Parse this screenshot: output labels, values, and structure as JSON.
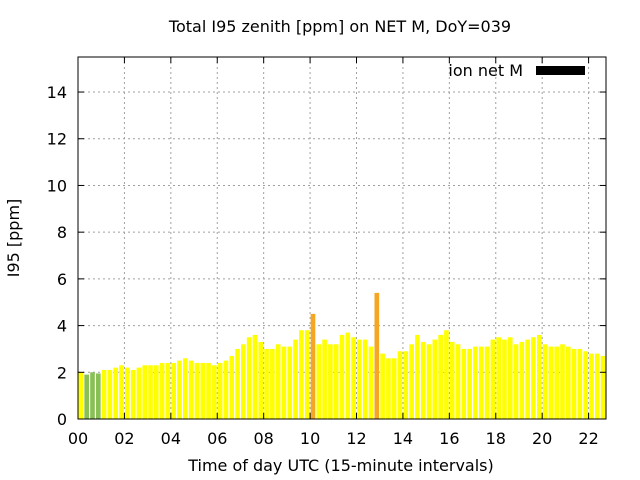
{
  "chart_data": {
    "type": "bar",
    "title": "Total I95 zenith [ppm] on NET M, DoY=039",
    "xlabel": "Time of day UTC (15-minute intervals)",
    "ylabel": "I95 [ppm]",
    "xlim": [
      0,
      22.75
    ],
    "ylim": [
      0,
      15.5
    ],
    "x_ticks": [
      "00",
      "02",
      "04",
      "06",
      "08",
      "10",
      "12",
      "14",
      "16",
      "18",
      "20",
      "22"
    ],
    "y_ticks": [
      "0",
      "2",
      "4",
      "6",
      "8",
      "10",
      "12",
      "14"
    ],
    "grid": true,
    "legend": {
      "label": "ion net M",
      "color": "#000000",
      "position": "top-right"
    },
    "colors": {
      "normal": "#ffff00",
      "elevated": "#f5a623",
      "low": "#88c055"
    },
    "x": [
      0.0,
      0.25,
      0.5,
      0.75,
      1.0,
      1.25,
      1.5,
      1.75,
      2.0,
      2.25,
      2.5,
      2.75,
      3.0,
      3.25,
      3.5,
      3.75,
      4.0,
      4.25,
      4.5,
      4.75,
      5.0,
      5.25,
      5.5,
      5.75,
      6.0,
      6.25,
      6.5,
      6.75,
      7.0,
      7.25,
      7.5,
      7.75,
      8.0,
      8.25,
      8.5,
      8.75,
      9.0,
      9.25,
      9.5,
      9.75,
      10.0,
      10.25,
      10.5,
      10.75,
      11.0,
      11.25,
      11.5,
      11.75,
      12.0,
      12.25,
      12.5,
      12.75,
      13.0,
      13.25,
      13.5,
      13.75,
      14.0,
      14.25,
      14.5,
      14.75,
      15.0,
      15.25,
      15.5,
      15.75,
      16.0,
      16.25,
      16.5,
      16.75,
      17.0,
      17.25,
      17.5,
      17.75,
      18.0,
      18.25,
      18.5,
      18.75,
      19.0,
      19.25,
      19.5,
      19.75,
      20.0,
      20.25,
      20.5,
      20.75,
      21.0,
      21.25,
      21.5,
      21.75,
      22.0,
      22.25,
      22.5
    ],
    "values": [
      2.0,
      1.9,
      2.0,
      1.95,
      2.1,
      2.1,
      2.2,
      2.3,
      2.2,
      2.1,
      2.2,
      2.3,
      2.3,
      2.3,
      2.4,
      2.4,
      2.4,
      2.5,
      2.6,
      2.5,
      2.4,
      2.4,
      2.4,
      2.3,
      2.4,
      2.5,
      2.7,
      3.0,
      3.2,
      3.5,
      3.6,
      3.3,
      3.0,
      3.0,
      3.2,
      3.1,
      3.1,
      3.4,
      3.8,
      3.8,
      4.5,
      3.2,
      3.4,
      3.2,
      3.2,
      3.6,
      3.7,
      3.5,
      3.4,
      3.4,
      3.1,
      5.4,
      2.8,
      2.6,
      2.6,
      2.9,
      2.9,
      3.2,
      3.6,
      3.3,
      3.2,
      3.4,
      3.6,
      3.8,
      3.3,
      3.2,
      3.0,
      3.0,
      3.1,
      3.1,
      3.1,
      3.4,
      3.5,
      3.4,
      3.5,
      3.2,
      3.3,
      3.4,
      3.5,
      3.6,
      3.2,
      3.1,
      3.1,
      3.2,
      3.1,
      3.0,
      3.0,
      2.9,
      2.8,
      2.8,
      2.7
    ],
    "categories": [
      "normal",
      "low",
      "low",
      "low",
      "normal",
      "normal",
      "normal",
      "normal",
      "normal",
      "normal",
      "normal",
      "normal",
      "normal",
      "normal",
      "normal",
      "normal",
      "normal",
      "normal",
      "normal",
      "normal",
      "normal",
      "normal",
      "normal",
      "normal",
      "normal",
      "normal",
      "normal",
      "normal",
      "normal",
      "normal",
      "normal",
      "normal",
      "normal",
      "normal",
      "normal",
      "normal",
      "normal",
      "normal",
      "normal",
      "normal",
      "elevated",
      "normal",
      "normal",
      "normal",
      "normal",
      "normal",
      "normal",
      "normal",
      "normal",
      "normal",
      "normal",
      "elevated",
      "normal",
      "normal",
      "normal",
      "normal",
      "normal",
      "normal",
      "normal",
      "normal",
      "normal",
      "normal",
      "normal",
      "normal",
      "normal",
      "normal",
      "normal",
      "normal",
      "normal",
      "normal",
      "normal",
      "normal",
      "normal",
      "normal",
      "normal",
      "normal",
      "normal",
      "normal",
      "normal",
      "normal",
      "normal",
      "normal",
      "normal",
      "normal",
      "normal",
      "normal",
      "normal",
      "normal",
      "normal",
      "normal",
      "normal"
    ]
  }
}
